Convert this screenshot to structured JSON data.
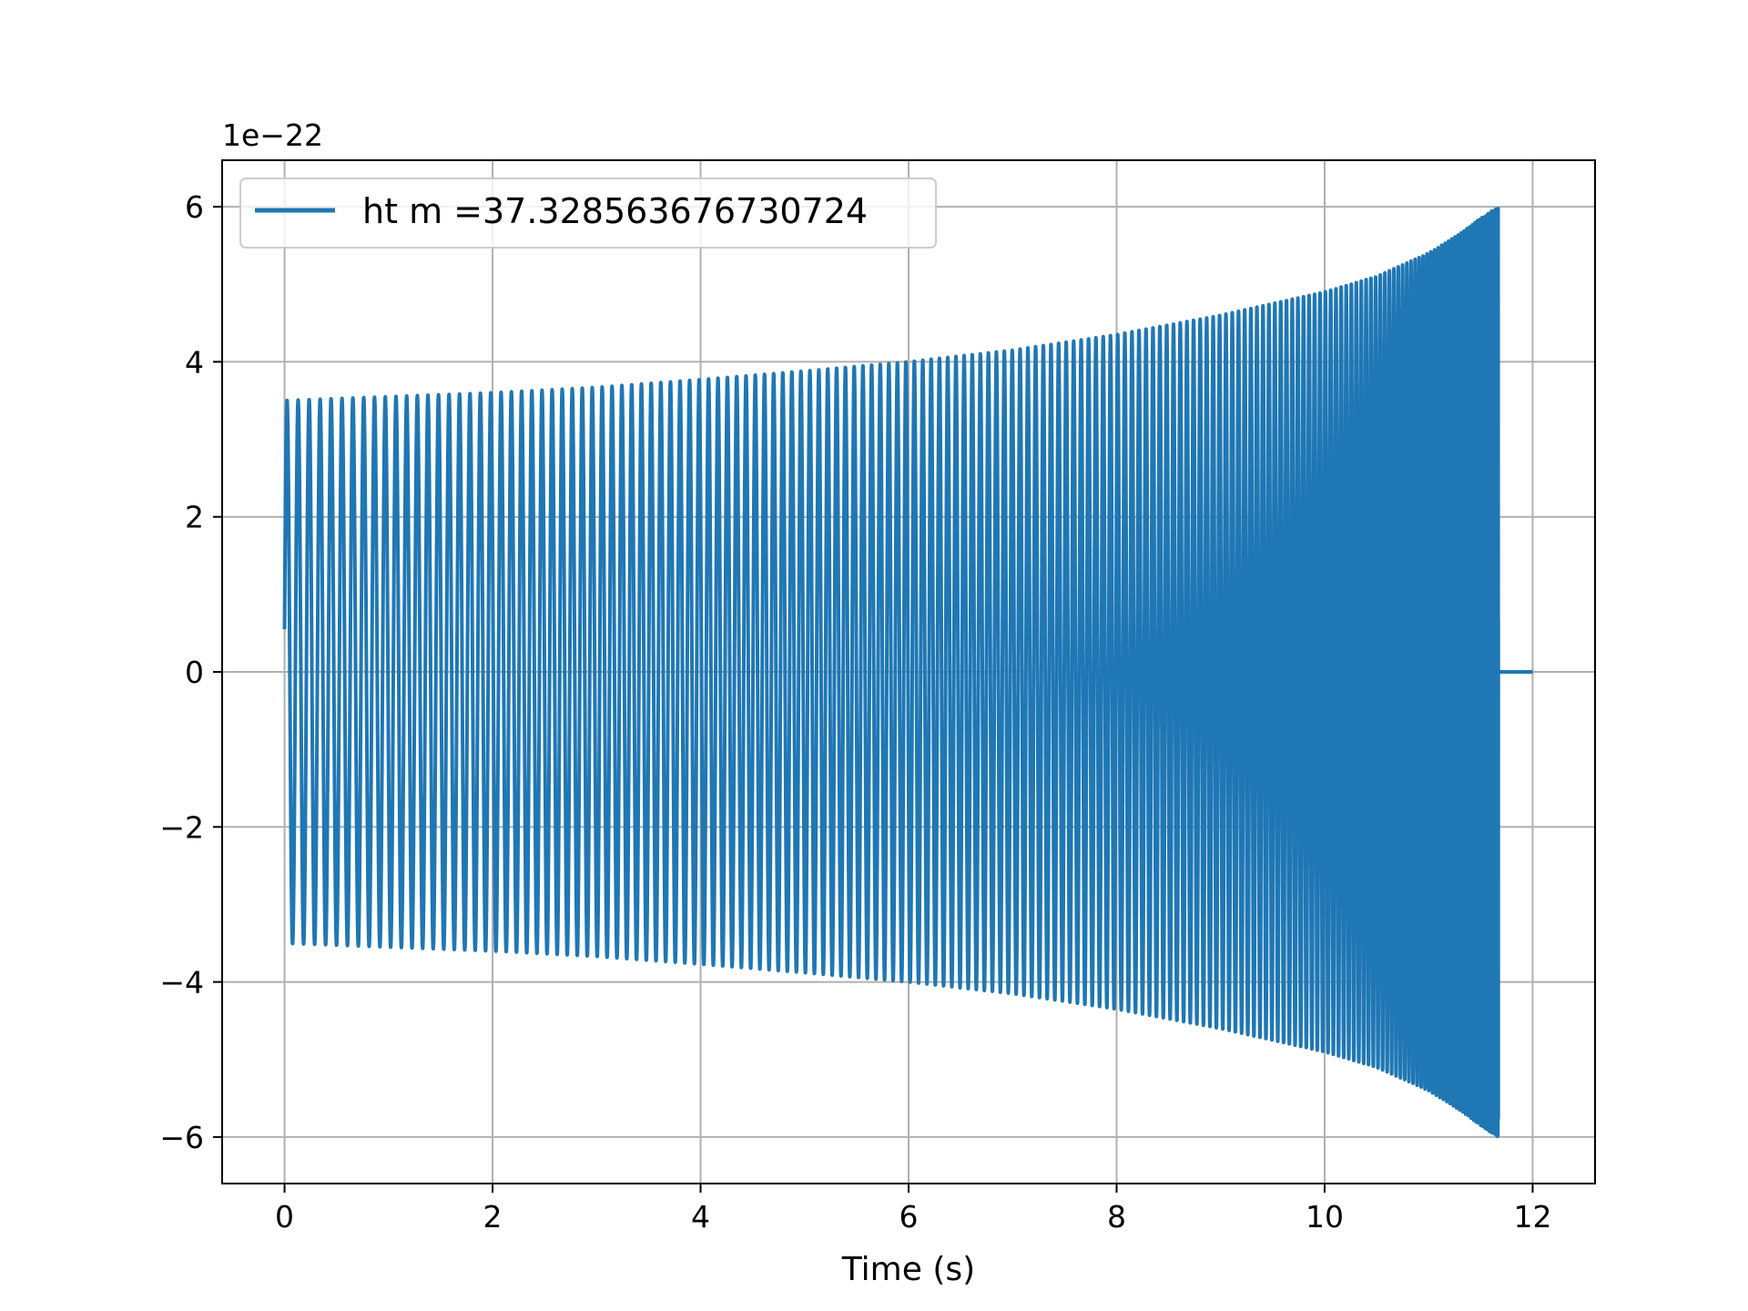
{
  "chart_data": {
    "type": "line",
    "title": "",
    "xlabel": "Time (s)",
    "ylabel": "",
    "y_scale_label": "1e−22",
    "xlim": [
      -0.6,
      12.6
    ],
    "ylim": [
      -6.6,
      6.6
    ],
    "x_ticks": [
      0,
      2,
      4,
      6,
      8,
      10,
      12
    ],
    "y_ticks": [
      -6,
      -4,
      -2,
      0,
      2,
      4,
      6
    ],
    "x_tick_labels": [
      "0",
      "2",
      "4",
      "6",
      "8",
      "10",
      "12"
    ],
    "y_tick_labels": [
      "−6",
      "−4",
      "−2",
      "0",
      "2",
      "4",
      "6"
    ],
    "grid": true,
    "legend_position": "top-left",
    "series": [
      {
        "name": "ht m =37.328563676730724",
        "color": "#1f77b4",
        "waveform": "chirp",
        "t_start": 0.0,
        "t_merger": 11.67,
        "t_end": 12.0,
        "start_value": 0.55,
        "initial_amplitude": 3.5,
        "peak_amplitude": 6.0,
        "amplitude_envelope": {
          "t": [
            0,
            1,
            2,
            3,
            4,
            5,
            6,
            7,
            8,
            9,
            10,
            10.5,
            11,
            11.3,
            11.5,
            11.67
          ],
          "amplitude": [
            3.5,
            3.55,
            3.6,
            3.67,
            3.77,
            3.88,
            4.0,
            4.15,
            4.35,
            4.6,
            4.9,
            5.1,
            5.4,
            5.65,
            5.85,
            6.0
          ]
        },
        "cycles_to_merger": 175,
        "post_merger_value": 0
      }
    ]
  }
}
